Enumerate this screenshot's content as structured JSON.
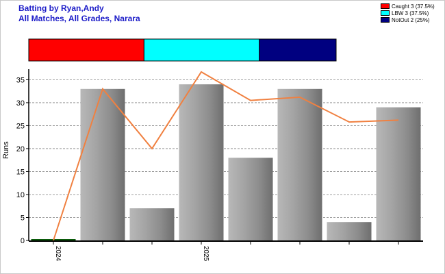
{
  "header": {
    "title_line1": "Batting by Ryan,Andy",
    "title_line2": "All Matches, All Grades, Narara"
  },
  "legend": [
    {
      "label": "Caught 3 (37.5%)",
      "color": "#ff0000"
    },
    {
      "label": "LBW 3 (37.5%)",
      "color": "#00ffff"
    },
    {
      "label": "NotOut 2 (25%)",
      "color": "#000080"
    }
  ],
  "summary_bar": [
    {
      "name": "Caught",
      "fraction": 0.375,
      "color": "#ff0000"
    },
    {
      "name": "LBW",
      "fraction": 0.375,
      "color": "#00ffff"
    },
    {
      "name": "NotOut",
      "fraction": 0.25,
      "color": "#000080"
    }
  ],
  "chart_data": {
    "type": "bar",
    "title": "",
    "xlabel": "",
    "ylabel": "Runs",
    "ylim": [
      0,
      37
    ],
    "yticks": [
      0,
      5,
      10,
      15,
      20,
      25,
      30,
      35
    ],
    "grid": "horizontal-dashed",
    "x_tick_labels": [
      {
        "index": 0,
        "label": "2024"
      },
      {
        "index": 3,
        "label": "2025"
      }
    ],
    "series": [
      {
        "type": "bar",
        "values": [
          0,
          33,
          7,
          34,
          18,
          33,
          4,
          29
        ]
      },
      {
        "type": "line",
        "color": "#f08040",
        "values": [
          0,
          33,
          20,
          36.7,
          30.5,
          31.2,
          25.8,
          26.2
        ]
      }
    ]
  }
}
